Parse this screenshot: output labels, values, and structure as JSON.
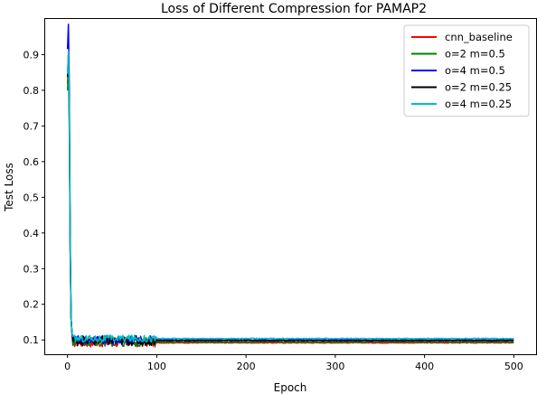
{
  "chart_data": {
    "type": "line",
    "title": "Loss of Different Compression for PAMAP2",
    "xlabel": "Epoch",
    "ylabel": "Test Loss",
    "xlim": [
      -25,
      525
    ],
    "ylim": [
      0.06,
      1.0
    ],
    "xticks": [
      0,
      100,
      200,
      300,
      400,
      500
    ],
    "yticks": [
      0.1,
      0.2,
      0.3,
      0.4,
      0.5,
      0.6,
      0.7,
      0.8,
      0.9
    ],
    "legend_position": "top-right",
    "grid": false,
    "series": [
      {
        "name": "cnn_baseline",
        "color": "#ff0000",
        "start": 0.88,
        "plateau": 0.092,
        "noise": 0.012,
        "noisy_until": 100,
        "end_epoch": 500
      },
      {
        "name": "o=2 m=0.5",
        "color": "#008000",
        "start": 0.86,
        "plateau": 0.094,
        "noise": 0.012,
        "noisy_until": 100,
        "end_epoch": 500
      },
      {
        "name": "o=4 m=0.5",
        "color": "#0000ff",
        "start": 0.985,
        "plateau": 0.1,
        "noise": 0.012,
        "noisy_until": 100,
        "end_epoch": 500
      },
      {
        "name": "o=2 m=0.25",
        "color": "#000000",
        "start": 0.9,
        "plateau": 0.098,
        "noise": 0.014,
        "noisy_until": 100,
        "end_epoch": 500
      },
      {
        "name": "o=4 m=0.25",
        "color": "#00bfbf",
        "start": 0.91,
        "plateau": 0.104,
        "noise": 0.01,
        "noisy_until": 100,
        "end_epoch": 500
      }
    ]
  }
}
